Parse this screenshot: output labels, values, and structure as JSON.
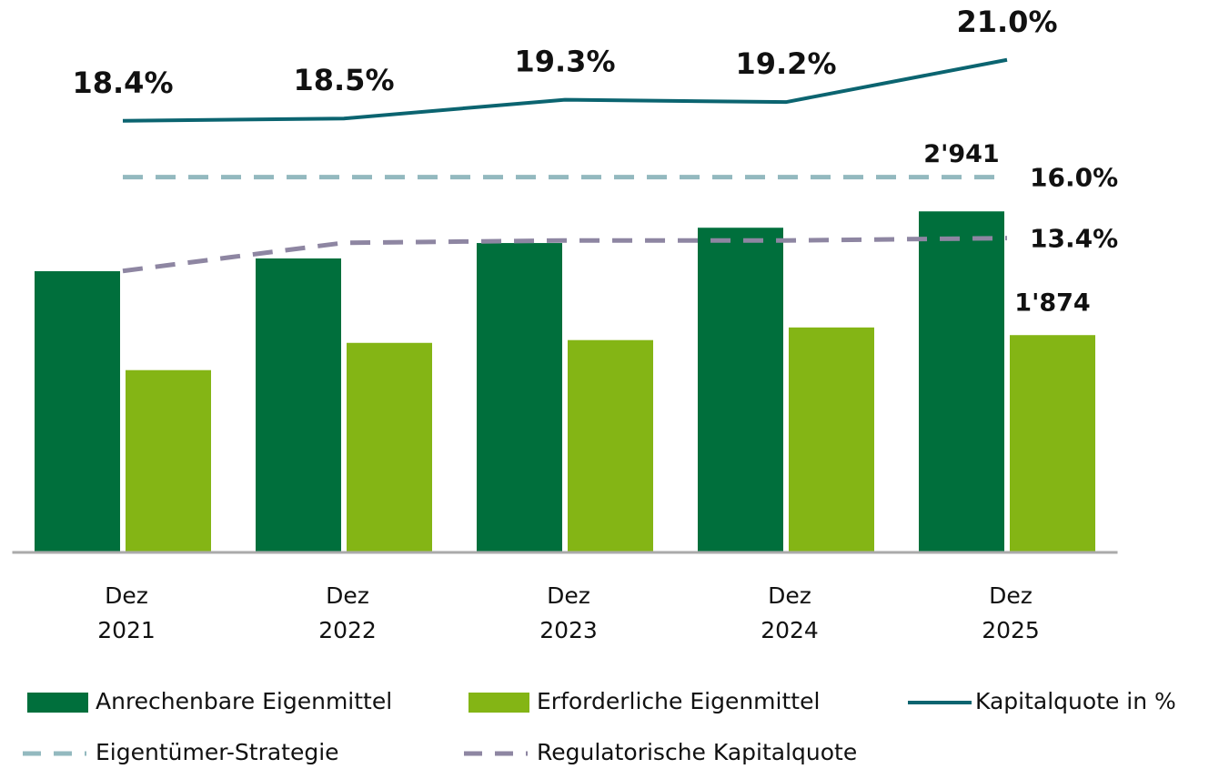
{
  "chart_data": {
    "type": "bar",
    "categories": [
      "Dez 2021",
      "Dez 2022",
      "Dez 2023",
      "Dez 2024",
      "Dez 2025"
    ],
    "ylim": [
      0,
      4450
    ],
    "y2lim": [
      0,
      22
    ],
    "series": [
      {
        "name": "Anrechenbare Eigenmittel",
        "type": "bar",
        "color": "#006f3c",
        "values": [
          2425,
          2535,
          2668,
          2800,
          2941
        ],
        "value_labels": [
          null,
          null,
          null,
          null,
          "2'941"
        ]
      },
      {
        "name": "Erforderliche Eigenmittel",
        "type": "bar",
        "color": "#84b515",
        "values": [
          1572,
          1807,
          1831,
          1940,
          1874
        ],
        "value_labels": [
          null,
          null,
          null,
          null,
          "1'874"
        ]
      },
      {
        "name": "Kapitalquote in %",
        "type": "line",
        "axis": "y2",
        "color": "#0b6470",
        "dash": false,
        "values": [
          18.4,
          18.5,
          19.3,
          19.2,
          21.0
        ],
        "value_labels": [
          "18.4%",
          "18.5%",
          "19.3%",
          "19.2%",
          "21.0%"
        ]
      },
      {
        "name": "Eigentümer-Strategie",
        "type": "line",
        "axis": "y2",
        "color": "#93b9bf",
        "dash": true,
        "values": [
          16.0,
          16.0,
          16.0,
          16.0,
          16.0
        ],
        "value_labels": [
          null,
          null,
          null,
          null,
          "16.0%"
        ]
      },
      {
        "name": "Regulatorische Kapitalquote",
        "type": "line",
        "axis": "y2",
        "color": "#8e86a2",
        "dash": true,
        "values": [
          12.0,
          13.2,
          13.3,
          13.3,
          13.4
        ],
        "value_labels": [
          null,
          null,
          null,
          null,
          "13.4%"
        ]
      }
    ]
  }
}
